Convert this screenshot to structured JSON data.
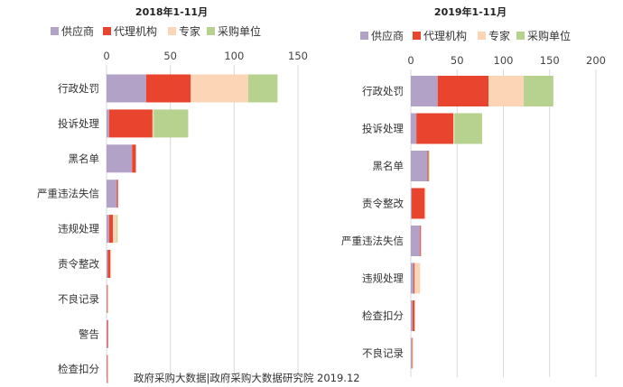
{
  "chart_data": [
    {
      "type": "bar",
      "orientation": "horizontal",
      "stacked": true,
      "title": "2018年1-11月",
      "xlabel": "",
      "ylabel": "",
      "xlim": [
        0,
        150
      ],
      "x_ticks": [
        "0",
        "50",
        "100",
        "150"
      ],
      "grid": true,
      "legend_position": "top",
      "categories": [
        "行政处罚",
        "投诉处理",
        "黑名单",
        "严重违法失信",
        "违规处理",
        "责令整改",
        "不良记录",
        "警告",
        "检查扣分"
      ],
      "series": [
        {
          "name": "供应商",
          "color": "#b3a2c7",
          "values": [
            31,
            2,
            20,
            8,
            2,
            1,
            0.5,
            0.5,
            0.5
          ]
        },
        {
          "name": "代理机构",
          "color": "#e8442e",
          "values": [
            35,
            34,
            3,
            1,
            3,
            2,
            0.3,
            0.5,
            0.3
          ]
        },
        {
          "name": "专家",
          "color": "#fbd5b5",
          "values": [
            45,
            1,
            0,
            0,
            3,
            0.5,
            0.2,
            0,
            0.2
          ]
        },
        {
          "name": "采购单位",
          "color": "#b7d28e",
          "values": [
            23,
            27,
            0,
            0,
            0.5,
            0,
            0,
            0,
            0
          ]
        }
      ]
    },
    {
      "type": "bar",
      "orientation": "horizontal",
      "stacked": true,
      "title": "2019年1-11月",
      "xlabel": "",
      "ylabel": "",
      "xlim": [
        0,
        200
      ],
      "x_ticks": [
        "0",
        "50",
        "100",
        "150",
        "200"
      ],
      "grid": true,
      "legend_position": "top",
      "categories": [
        "行政处罚",
        "投诉处理",
        "黑名单",
        "责令整改",
        "严重违法失信",
        "违规处理",
        "检查扣分",
        "不良记录"
      ],
      "series": [
        {
          "name": "供应商",
          "color": "#b3a2c7",
          "values": [
            29,
            6,
            18,
            1,
            10,
            3,
            2,
            1
          ]
        },
        {
          "name": "代理机构",
          "color": "#e8442e",
          "values": [
            55,
            40,
            1,
            14,
            1,
            1,
            2,
            0.5
          ]
        },
        {
          "name": "专家",
          "color": "#fbd5b5",
          "values": [
            38,
            1,
            0,
            1,
            0,
            6,
            1,
            0.5
          ]
        },
        {
          "name": "采购单位",
          "color": "#b7d28e",
          "values": [
            32,
            30,
            1,
            0,
            0,
            0,
            0,
            0
          ]
        }
      ]
    }
  ],
  "footer": "政府采购大数据|政府采购大数据研究院 2019.12"
}
